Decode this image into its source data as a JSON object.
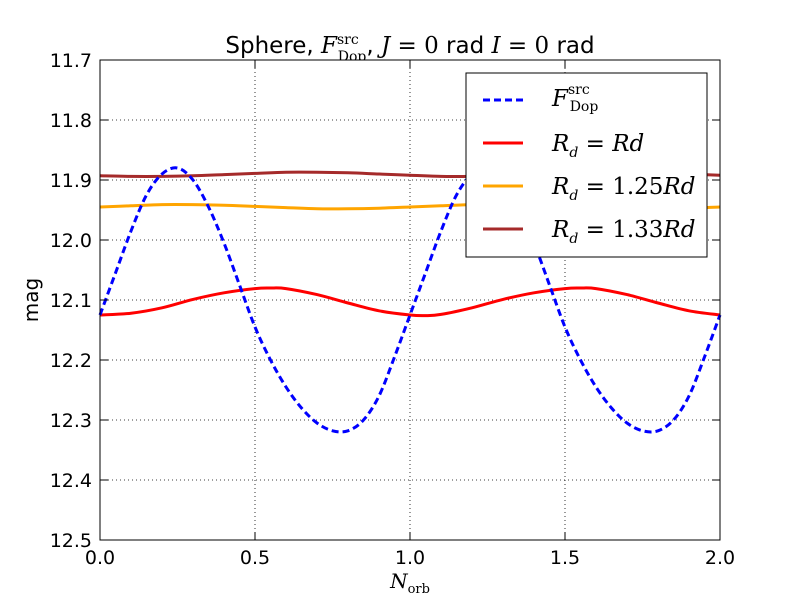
{
  "chart_data": {
    "type": "line",
    "title": {
      "prefix": "Sphere, ",
      "F": "F",
      "F_sup": "src",
      "F_sub": "Dop",
      "mid": ", ",
      "J": "J",
      "J_eq": " = 0 ",
      "rad1": "rad ",
      "I": "I",
      "I_eq": " = 0 ",
      "rad2": "rad"
    },
    "xlabel": {
      "base": "N",
      "sub": "orb"
    },
    "ylabel": "mag",
    "xlim": [
      0.0,
      2.0
    ],
    "ylim": [
      11.7,
      12.5
    ],
    "y_inverted": true,
    "x_ticks": [
      "0.0",
      "0.5",
      "1.0",
      "1.5",
      "2.0"
    ],
    "y_ticks": [
      "11.7",
      "11.8",
      "11.9",
      "12.0",
      "12.1",
      "12.2",
      "12.3",
      "12.4",
      "12.5"
    ],
    "grid": true,
    "legend_position": "upper-right",
    "series": [
      {
        "legend": {
          "base": "F",
          "sup": "src",
          "sub": "Dop"
        },
        "color": "#0000ff",
        "style": "dashed",
        "x": [
          0.0,
          0.05,
          0.1,
          0.15,
          0.2,
          0.25,
          0.3,
          0.35,
          0.4,
          0.45,
          0.5,
          0.55,
          0.6,
          0.65,
          0.7,
          0.75,
          0.8,
          0.85,
          0.9,
          0.95,
          1.0,
          1.05,
          1.1,
          1.15,
          1.2,
          1.25,
          1.3,
          1.35,
          1.4,
          1.45,
          1.5,
          1.55,
          1.6,
          1.65,
          1.7,
          1.75,
          1.8,
          1.85,
          1.9,
          1.95,
          2.0
        ],
        "y": [
          12.125,
          12.055,
          11.985,
          11.925,
          11.89,
          11.88,
          11.9,
          11.945,
          12.005,
          12.075,
          12.145,
          12.2,
          12.245,
          12.28,
          12.305,
          12.318,
          12.318,
          12.3,
          12.26,
          12.195,
          12.125,
          12.055,
          11.985,
          11.925,
          11.89,
          11.88,
          11.9,
          11.945,
          12.005,
          12.075,
          12.145,
          12.2,
          12.245,
          12.28,
          12.305,
          12.318,
          12.318,
          12.3,
          12.26,
          12.195,
          12.125
        ]
      },
      {
        "legend": {
          "lhs": "R",
          "lhs_sub": "d",
          "eq": " = ",
          "coef": "",
          "rhs": "Rd"
        },
        "color": "#ff0000",
        "style": "solid",
        "x": [
          0.0,
          0.1,
          0.2,
          0.3,
          0.4,
          0.5,
          0.55,
          0.6,
          0.7,
          0.8,
          0.9,
          1.0,
          1.05,
          1.1,
          1.2,
          1.3,
          1.4,
          1.5,
          1.55,
          1.6,
          1.7,
          1.8,
          1.9,
          2.0
        ],
        "y": [
          12.125,
          12.122,
          12.113,
          12.099,
          12.088,
          12.081,
          12.08,
          12.081,
          12.091,
          12.105,
          12.118,
          12.125,
          12.126,
          12.124,
          12.113,
          12.099,
          12.088,
          12.081,
          12.08,
          12.081,
          12.091,
          12.105,
          12.118,
          12.125
        ]
      },
      {
        "legend": {
          "lhs": "R",
          "lhs_sub": "d",
          "eq": " = ",
          "coef": "1.25",
          "rhs": "Rd"
        },
        "color": "#ffa500",
        "style": "solid",
        "x": [
          0.0,
          0.1,
          0.2,
          0.3,
          0.4,
          0.5,
          0.6,
          0.7,
          0.8,
          0.9,
          1.0,
          1.1,
          1.2,
          1.3,
          1.4,
          1.5,
          1.6,
          1.7,
          1.8,
          1.9,
          2.0
        ],
        "y": [
          11.945,
          11.943,
          11.941,
          11.941,
          11.942,
          11.944,
          11.946,
          11.948,
          11.948,
          11.947,
          11.945,
          11.943,
          11.941,
          11.941,
          11.942,
          11.944,
          11.946,
          11.948,
          11.948,
          11.947,
          11.945
        ]
      },
      {
        "legend": {
          "lhs": "R",
          "lhs_sub": "d",
          "eq": " = ",
          "coef": "1.33",
          "rhs": "Rd"
        },
        "color": "#a52a2a",
        "style": "solid",
        "x": [
          0.0,
          0.1,
          0.2,
          0.3,
          0.4,
          0.5,
          0.6,
          0.7,
          0.8,
          0.9,
          1.0,
          1.1,
          1.2,
          1.3,
          1.4,
          1.5,
          1.6,
          1.7,
          1.8,
          1.9,
          2.0
        ],
        "y": [
          11.893,
          11.894,
          11.894,
          11.893,
          11.891,
          11.889,
          11.887,
          11.887,
          11.888,
          11.89,
          11.892,
          11.894,
          11.894,
          11.893,
          11.891,
          11.889,
          11.887,
          11.887,
          11.888,
          11.89,
          11.892
        ]
      }
    ]
  }
}
